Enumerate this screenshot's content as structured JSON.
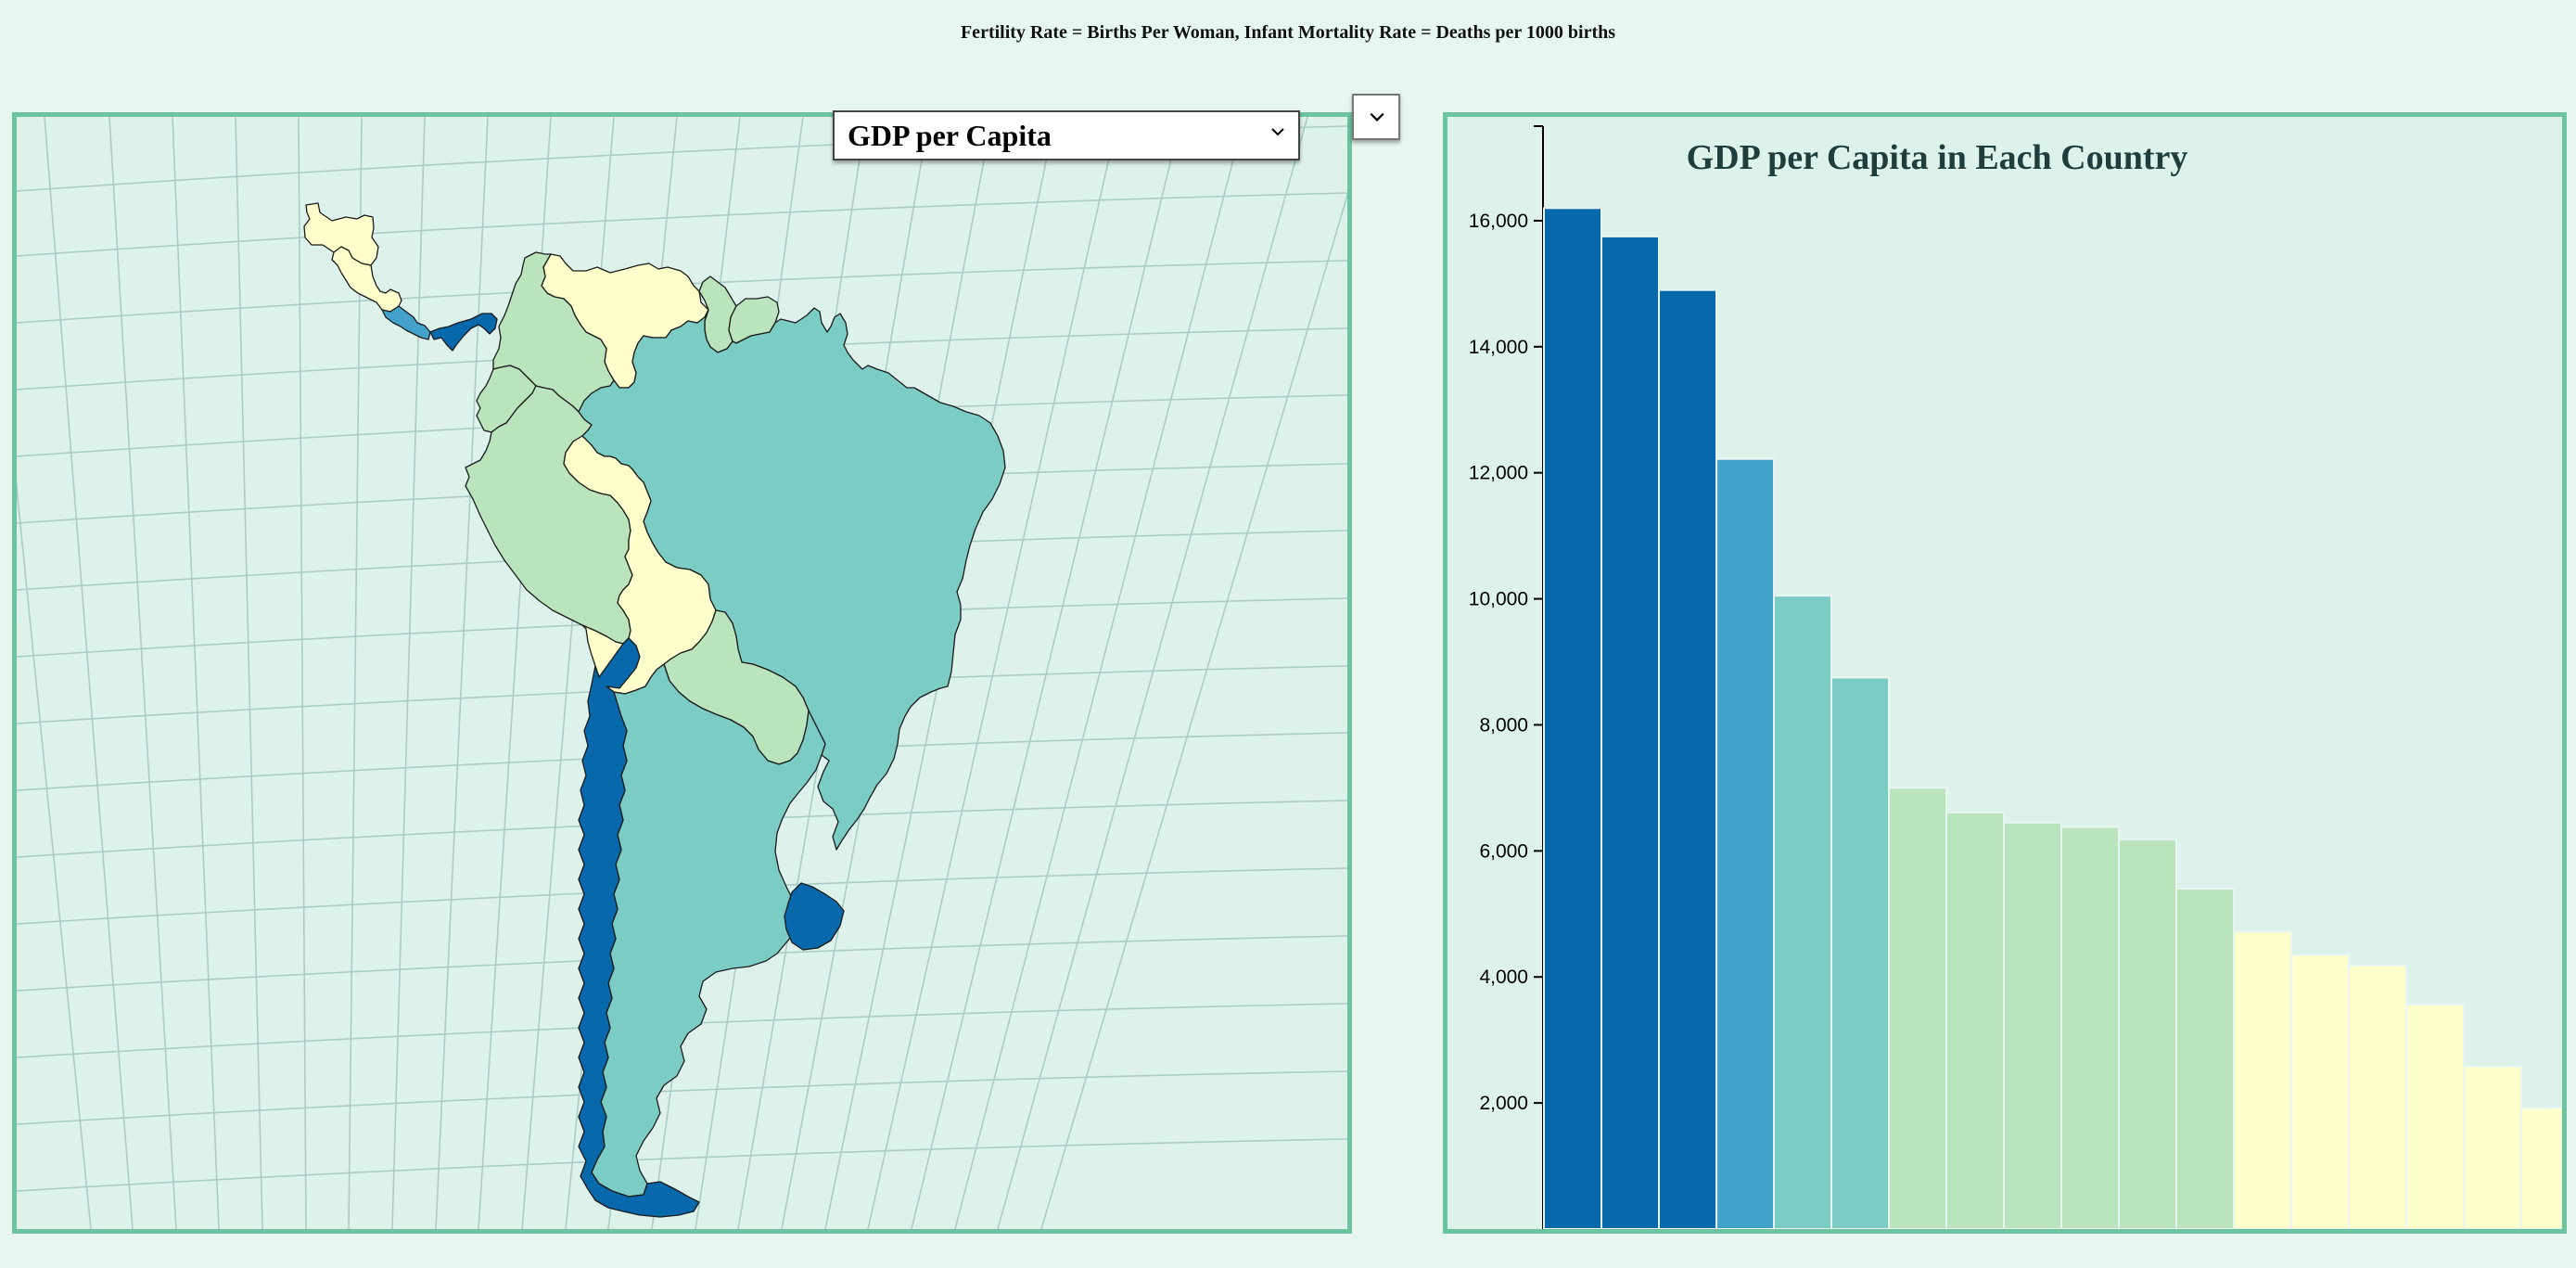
{
  "note": "Fertility Rate = Births Per Woman, Infant Mortality Rate = Deaths per 1000 births",
  "selector": {
    "selected": "GDP per Capita",
    "options": [
      "GDP per Capita"
    ]
  },
  "icons": {
    "dropdown": "chevron-down-icon",
    "mini_dropdown": "chevron-down-icon"
  },
  "colors": {
    "background": "#e8f6f1",
    "panel": "#def2ec",
    "panel_border": "#6cc3a0",
    "scale": [
      "#0868ac",
      "#43a2ca",
      "#7bccc4",
      "#bae4bc",
      "#ffffcc"
    ]
  },
  "map": {
    "graticule": true,
    "regions": [
      {
        "id": "mexico",
        "level": 4
      },
      {
        "id": "central-america",
        "level": 4
      },
      {
        "id": "costa-rica",
        "level": 1
      },
      {
        "id": "panama",
        "level": 0
      },
      {
        "id": "venezuela",
        "level": 4
      },
      {
        "id": "colombia",
        "level": 3
      },
      {
        "id": "guyana",
        "level": 3
      },
      {
        "id": "suriname",
        "level": 3
      },
      {
        "id": "ecuador",
        "level": 3
      },
      {
        "id": "peru",
        "level": 3
      },
      {
        "id": "brazil",
        "level": 2
      },
      {
        "id": "bolivia",
        "level": 4
      },
      {
        "id": "paraguay",
        "level": 3
      },
      {
        "id": "argentina",
        "level": 2
      },
      {
        "id": "chile",
        "level": 0
      },
      {
        "id": "uruguay",
        "level": 0
      }
    ]
  },
  "chart_data": {
    "type": "bar",
    "title": "GDP per Capita in Each Country",
    "ylim": [
      0,
      17500
    ],
    "yticks": [
      2000,
      4000,
      6000,
      8000,
      10000,
      12000,
      14000,
      16000
    ],
    "yticklabels": [
      "2,000",
      "4,000",
      "6,000",
      "8,000",
      "10,000",
      "12,000",
      "14,000",
      "16,000"
    ],
    "values": [
      16200,
      15750,
      14900,
      12220,
      10050,
      8750,
      7000,
      6610,
      6450,
      6380,
      6180,
      5400,
      4720,
      4350,
      4180,
      3560,
      2580,
      1920
    ],
    "color_levels": [
      0,
      0,
      0,
      1,
      2,
      2,
      3,
      3,
      3,
      3,
      3,
      3,
      4,
      4,
      4,
      4,
      4,
      4
    ],
    "grid": false,
    "legend": "none"
  }
}
